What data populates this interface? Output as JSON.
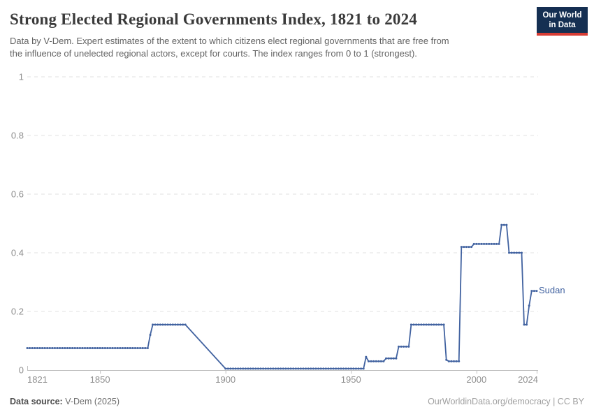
{
  "header": {
    "title": "Strong Elected Regional Governments Index, 1821 to 2024",
    "logo": {
      "line1": "Our World",
      "line2": "in Data"
    }
  },
  "subtitle": {
    "line1": "Data by V-Dem. Expert estimates of the extent to which citizens elect regional governments that are free from",
    "line2": "the influence of unelected regional actors, except for courts. The index ranges from 0 to 1 (strongest)."
  },
  "chart_data": {
    "type": "line",
    "title": "Strong Elected Regional Governments Index, 1821 to 2024",
    "xlabel": "",
    "ylabel": "",
    "xlim": [
      1821,
      2024
    ],
    "ylim": [
      0,
      1
    ],
    "x_ticks": [
      1821,
      1850,
      1900,
      1950,
      2000,
      2024
    ],
    "y_ticks": [
      0,
      0.2,
      0.4,
      0.6,
      0.8,
      1
    ],
    "y_tick_labels": [
      "0",
      "0.2",
      "0.4",
      "0.6",
      "0.8",
      "1"
    ],
    "grid": "horizontal dashed gridlines, markers at each yearly data point",
    "legend": "series name labeled at line end",
    "colors": {
      "line": "#4162a0",
      "grid": "#e0e0e0",
      "axis": "#c0c0c0",
      "tick_label": "#8f8f8f"
    },
    "series": [
      {
        "name": "Sudan",
        "color": "#4162a0",
        "segments_format": "[first_year, last_year, index_value] with one data point per year",
        "value_segments": [
          [
            1821,
            1869,
            0.075
          ],
          [
            1870,
            1870,
            0.12
          ],
          [
            1871,
            1884,
            0.155
          ],
          [
            1900,
            1955,
            0.005
          ],
          [
            1956,
            1956,
            0.045
          ],
          [
            1957,
            1963,
            0.03
          ],
          [
            1964,
            1968,
            0.04
          ],
          [
            1969,
            1973,
            0.08
          ],
          [
            1974,
            1987,
            0.155
          ],
          [
            1988,
            1988,
            0.035
          ],
          [
            1989,
            1993,
            0.03
          ],
          [
            1994,
            1998,
            0.42
          ],
          [
            1999,
            2009,
            0.43
          ],
          [
            2010,
            2012,
            0.495
          ],
          [
            2013,
            2018,
            0.4
          ],
          [
            2019,
            2020,
            0.155
          ],
          [
            2021,
            2021,
            0.22
          ],
          [
            2022,
            2024,
            0.27
          ]
        ],
        "interpolated_gap": {
          "from": [
            1884,
            0.155
          ],
          "to": [
            1900,
            0.005
          ],
          "note": "straight interpolated decline, no yearly markers between 1885 and 1899"
        }
      }
    ]
  },
  "footer": {
    "datasource_label": "Data source:",
    "datasource_value": "V-Dem (2025)",
    "link_text": "OurWorldinData.org/democracy | CC BY"
  }
}
